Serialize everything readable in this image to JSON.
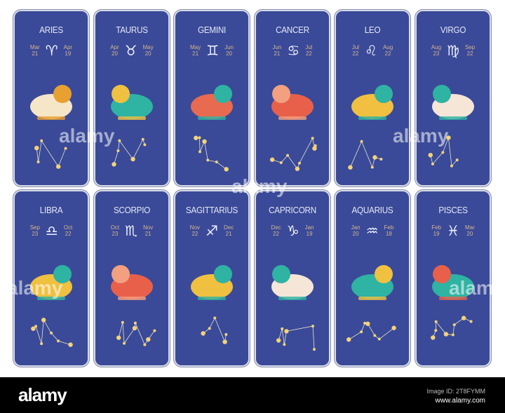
{
  "cards": [
    {
      "name": "ARIES",
      "symbol": "♈",
      "start": [
        "Mar",
        "21"
      ],
      "end": [
        "Apr",
        "19"
      ],
      "colors": [
        "#f5e6c8",
        "#e8a030"
      ]
    },
    {
      "name": "TAURUS",
      "symbol": "♉",
      "start": [
        "Apr",
        "20"
      ],
      "end": [
        "May",
        "20"
      ],
      "colors": [
        "#2fb3a3",
        "#f0c040"
      ]
    },
    {
      "name": "GEMINI",
      "symbol": "♊",
      "start": [
        "May",
        "21"
      ],
      "end": [
        "Jun",
        "20"
      ],
      "colors": [
        "#e86a50",
        "#2fb3a3"
      ]
    },
    {
      "name": "CANCER",
      "symbol": "♋",
      "start": [
        "Jun",
        "21"
      ],
      "end": [
        "Jul",
        "22"
      ],
      "colors": [
        "#e8604a",
        "#f2a080"
      ]
    },
    {
      "name": "LEO",
      "symbol": "♌",
      "start": [
        "Jul",
        "22"
      ],
      "end": [
        "Aug",
        "22"
      ],
      "colors": [
        "#f2c040",
        "#2fb3a3"
      ]
    },
    {
      "name": "VIRGO",
      "symbol": "♍",
      "start": [
        "Aug",
        "23"
      ],
      "end": [
        "Sep",
        "22"
      ],
      "colors": [
        "#f5e6d8",
        "#2fb3a3"
      ]
    },
    {
      "name": "LIBRA",
      "symbol": "♎",
      "start": [
        "Sep",
        "23"
      ],
      "end": [
        "Oct",
        "22"
      ],
      "colors": [
        "#f0c040",
        "#2fb3a3"
      ]
    },
    {
      "name": "SCORPIO",
      "symbol": "♏",
      "start": [
        "Oct",
        "23"
      ],
      "end": [
        "Nov",
        "21"
      ],
      "colors": [
        "#e8604a",
        "#f2a080"
      ]
    },
    {
      "name": "SAGITTARIUS",
      "symbol": "♐",
      "start": [
        "Nov",
        "22"
      ],
      "end": [
        "Dec",
        "21"
      ],
      "colors": [
        "#f0c040",
        "#2fb3a3"
      ]
    },
    {
      "name": "CAPRICORN",
      "symbol": "♑",
      "start": [
        "Dec",
        "22"
      ],
      "end": [
        "Jan",
        "19"
      ],
      "colors": [
        "#f5e6d8",
        "#2fb3a3"
      ]
    },
    {
      "name": "AQUARIUS",
      "symbol": "♒",
      "start": [
        "Jan",
        "20"
      ],
      "end": [
        "Feb",
        "18"
      ],
      "colors": [
        "#2fb3a3",
        "#f0c040"
      ]
    },
    {
      "name": "PISCES",
      "symbol": "♓",
      "start": [
        "Feb",
        "19"
      ],
      "end": [
        "Mar",
        "20"
      ],
      "colors": [
        "#2fb3a3",
        "#e8604a"
      ]
    }
  ],
  "footer": {
    "logo": "alamy",
    "image_id": "Image ID: 2T8FYMM",
    "url": "www.alamy.com"
  },
  "watermark": "alamy",
  "colors": {
    "card": "#3a4a98",
    "title": "#e4e7f6",
    "dates": "#d8b48c",
    "star": "#f3d37a"
  }
}
